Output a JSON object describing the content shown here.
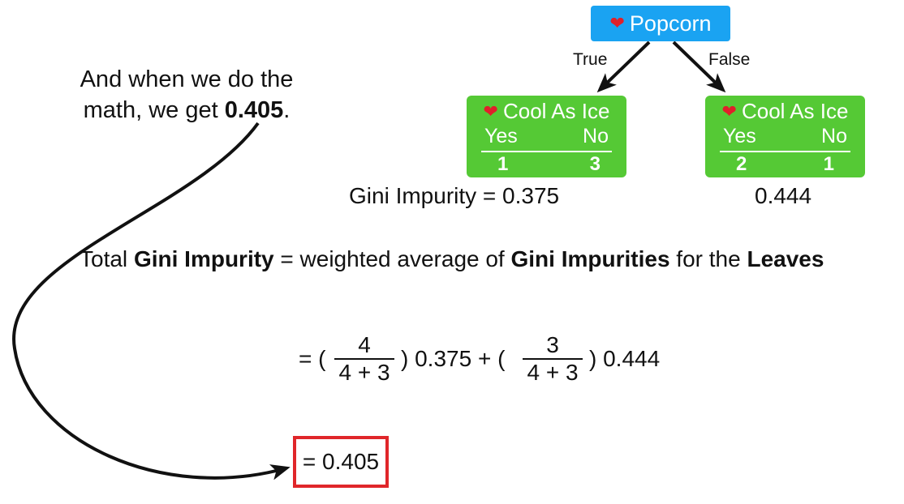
{
  "tree": {
    "root": {
      "label": "Popcorn"
    },
    "true_label": "True",
    "false_label": "False",
    "left_leaf": {
      "title": "Cool As Ice",
      "yes_label": "Yes",
      "no_label": "No",
      "yes_value": "1",
      "no_value": "3",
      "impurity_text": "Gini Impurity = 0.375"
    },
    "right_leaf": {
      "title": "Cool As Ice",
      "yes_label": "Yes",
      "no_label": "No",
      "yes_value": "2",
      "no_value": "1",
      "impurity_text": "0.444"
    }
  },
  "annotation": {
    "line1": "And when we do the",
    "line2_prefix": "math, we get ",
    "line2_value": "0.405",
    "line2_suffix": "."
  },
  "total": {
    "t1": "Total ",
    "t2": "Gini Impurity",
    "t3": " = weighted average of ",
    "t4": "Gini Impurities",
    "t5": " for the ",
    "t6": "Leaves"
  },
  "equation": {
    "open1": "= (",
    "frac1_num": "4",
    "frac1_den": "4 + 3",
    "mid": ") 0.375 + (",
    "frac2_num": "3",
    "frac2_den": "4 + 3",
    "end": ") 0.444"
  },
  "result": "= 0.405",
  "colors": {
    "root_node": "#1aa3f2",
    "leaf_node": "#55c935",
    "heart": "#e0202a",
    "result_border": "#e0262a"
  }
}
